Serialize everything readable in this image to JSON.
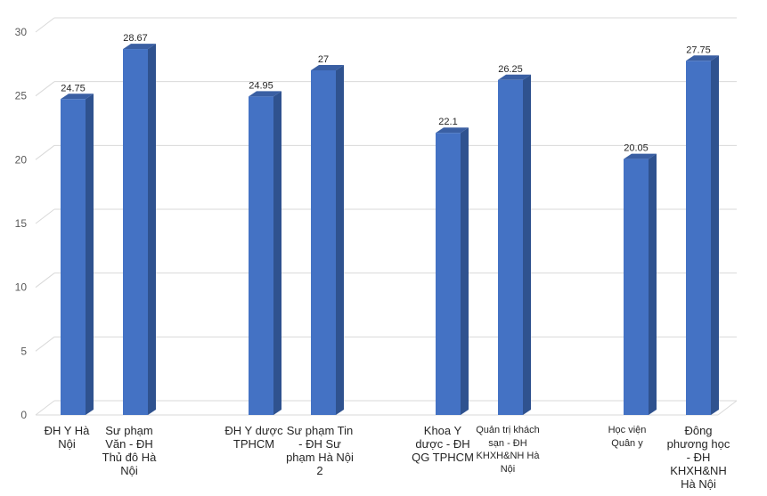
{
  "chart_data": {
    "type": "bar",
    "style": "3d-clustered-column",
    "ylim": [
      0,
      30
    ],
    "y_ticks": [
      "0",
      "5",
      "10",
      "15",
      "20",
      "25",
      "30"
    ],
    "grid": true,
    "legend": "none",
    "bar_color": "#4472C4",
    "bar_top_color": "#3A5FA3",
    "bar_side_color": "#2F528F",
    "groups": [
      {
        "bars": [
          {
            "category": "ĐH Y Hà Nội",
            "value": 24.75,
            "label": "24.75"
          },
          {
            "category": "Sư phạm Văn - ĐH Thủ đô Hà Nội",
            "value": 28.67,
            "label": "28.67"
          }
        ]
      },
      {
        "bars": [
          {
            "category": "ĐH Y dược TPHCM",
            "value": 24.95,
            "label": "24.95"
          },
          {
            "category": "Sư phạm Tin - ĐH Sư phạm Hà Nội 2",
            "value": 27,
            "label": "27"
          }
        ]
      },
      {
        "bars": [
          {
            "category": "Khoa Y dược - ĐH QG TPHCM",
            "value": 22.1,
            "label": "22.1"
          },
          {
            "category": "Quản trị khách sạn - ĐH KHXH&NH Hà Nội",
            "value": 26.25,
            "label": "26.25"
          }
        ]
      },
      {
        "bars": [
          {
            "category": "Học viện Quân y",
            "value": 20.05,
            "label": "20.05"
          },
          {
            "category": "Đông phương học - ĐH KHXH&NH Hà Nội",
            "value": 27.75,
            "label": "27.75"
          }
        ]
      }
    ]
  }
}
